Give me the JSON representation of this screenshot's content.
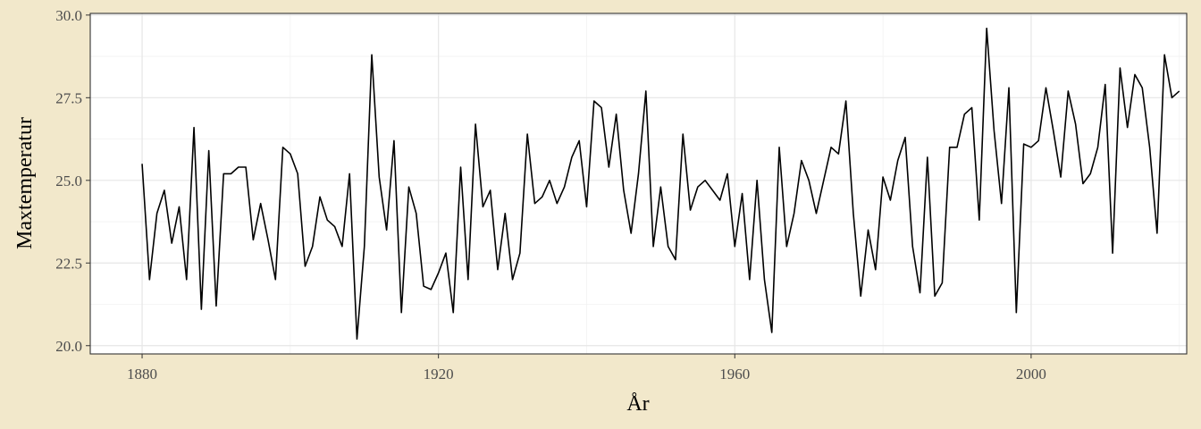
{
  "colors": {
    "page_background": "#f2e8cb",
    "panel_background": "#ffffff",
    "grid_major": "#e6e6e6",
    "grid_minor": "#f2f2f2",
    "line": "#000000",
    "panel_border": "#333333"
  },
  "chart_data": {
    "type": "line",
    "xlabel": "År",
    "ylabel": "Maxtemperatur",
    "xlim": [
      1873,
      2021
    ],
    "ylim": [
      19.75,
      30.05
    ],
    "x_ticks": [
      1880,
      1920,
      1960,
      2000
    ],
    "x_tick_labels": [
      "1880",
      "1920",
      "1960",
      "2000"
    ],
    "x_minor_ticks": [
      1900,
      1940,
      1980,
      2020
    ],
    "y_ticks": [
      20.0,
      22.5,
      25.0,
      27.5,
      30.0
    ],
    "y_tick_labels": [
      "20.0",
      "22.5",
      "25.0",
      "27.5",
      "30.0"
    ],
    "y_minor_ticks": [
      21.25,
      23.75,
      26.25,
      28.75
    ],
    "grid": true,
    "legend": "none",
    "series": [
      {
        "x": [
          1880,
          1881,
          1882,
          1883,
          1884,
          1885,
          1886,
          1887,
          1888,
          1889,
          1890,
          1891,
          1892,
          1893,
          1894,
          1895,
          1896,
          1897,
          1898,
          1899,
          1900,
          1901,
          1902,
          1903,
          1904,
          1905,
          1906,
          1907,
          1908,
          1909,
          1910,
          1911,
          1912,
          1913,
          1914,
          1915,
          1916,
          1917,
          1918,
          1919,
          1920,
          1921,
          1922,
          1923,
          1924,
          1925,
          1926,
          1927,
          1928,
          1929,
          1930,
          1931,
          1932,
          1933,
          1934,
          1935,
          1936,
          1937,
          1938,
          1939,
          1940,
          1941,
          1942,
          1943,
          1944,
          1945,
          1946,
          1947,
          1948,
          1949,
          1950,
          1951,
          1952,
          1953,
          1954,
          1955,
          1956,
          1957,
          1958,
          1959,
          1960,
          1961,
          1962,
          1963,
          1964,
          1965,
          1966,
          1967,
          1968,
          1969,
          1970,
          1971,
          1972,
          1973,
          1974,
          1975,
          1976,
          1977,
          1978,
          1979,
          1980,
          1981,
          1982,
          1983,
          1984,
          1985,
          1986,
          1987,
          1988,
          1989,
          1990,
          1991,
          1992,
          1993,
          1994,
          1995,
          1996,
          1997,
          1998,
          1999,
          2000,
          2001,
          2002,
          2003,
          2004,
          2005,
          2006,
          2007,
          2008,
          2009,
          2010,
          2011,
          2012,
          2013,
          2014,
          2015,
          2016,
          2017,
          2018,
          2019,
          2020
        ],
        "values": [
          25.5,
          22.0,
          24.0,
          24.7,
          23.1,
          24.2,
          22.0,
          26.6,
          21.1,
          25.9,
          21.2,
          25.2,
          25.2,
          25.4,
          25.4,
          23.2,
          24.3,
          23.2,
          22.0,
          26.0,
          25.8,
          25.2,
          22.4,
          23.0,
          24.5,
          23.8,
          23.6,
          23.0,
          25.2,
          20.2,
          23.0,
          28.8,
          25.1,
          23.5,
          26.2,
          21.0,
          24.8,
          24.0,
          21.8,
          21.7,
          22.2,
          22.8,
          21.0,
          25.4,
          22.0,
          26.7,
          24.2,
          24.7,
          22.3,
          24.0,
          22.0,
          22.8,
          26.4,
          24.3,
          24.5,
          25.0,
          24.3,
          24.8,
          25.7,
          26.2,
          24.2,
          27.4,
          27.2,
          25.4,
          27.0,
          24.7,
          23.4,
          25.2,
          27.7,
          23.0,
          24.8,
          23.0,
          22.6,
          26.4,
          24.1,
          24.8,
          25.0,
          24.7,
          24.4,
          25.2,
          23.0,
          24.6,
          22.0,
          25.0,
          22.0,
          20.4,
          26.0,
          23.0,
          24.0,
          25.6,
          25.0,
          24.0,
          25.0,
          26.0,
          25.8,
          27.4,
          24.0,
          21.5,
          23.5,
          22.3,
          25.1,
          24.4,
          25.6,
          26.3,
          23.0,
          21.6,
          25.7,
          21.5,
          21.9,
          26.0,
          26.0,
          27.0,
          27.2,
          23.8,
          29.6,
          26.5,
          24.3,
          27.8,
          21.0,
          26.1,
          26.0,
          26.2,
          27.8,
          26.5,
          25.1,
          27.7,
          26.7,
          24.9,
          25.2,
          26.0,
          27.9,
          22.8,
          28.4,
          26.6,
          28.2,
          27.8,
          26.0,
          23.4,
          28.8,
          27.5,
          27.7
        ]
      }
    ]
  }
}
